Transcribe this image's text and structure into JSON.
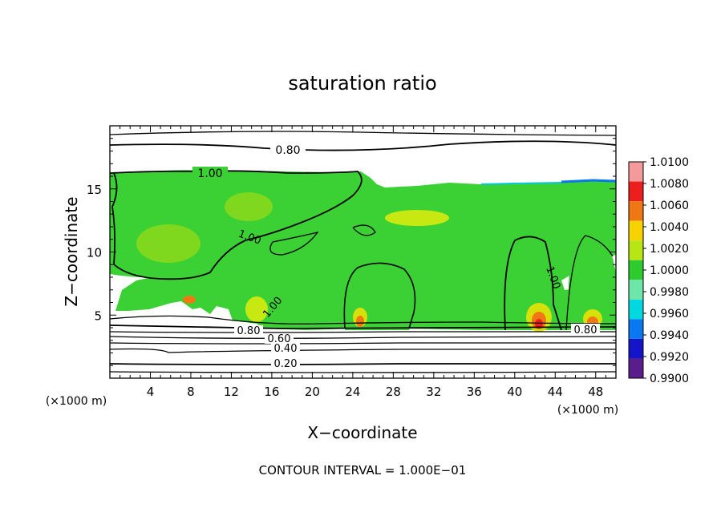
{
  "chart_data": {
    "type": "heatmap",
    "title": "saturation ratio",
    "xlabel": "X−coordinate",
    "ylabel": "Z−coordinate",
    "x_unit": "(×1000 m)",
    "x_unit_right": "(×1000 m)",
    "footer": "CONTOUR INTERVAL = 1.000E−01",
    "xlim": [
      0,
      50
    ],
    "ylim": [
      0,
      20
    ],
    "x_ticks": [
      4,
      8,
      12,
      16,
      20,
      24,
      28,
      32,
      36,
      40,
      44,
      48
    ],
    "y_ticks": [
      5,
      10,
      15
    ],
    "colorbar": {
      "levels": [
        "1.0100",
        "1.0080",
        "1.0060",
        "1.0040",
        "1.0020",
        "1.0000",
        "0.9980",
        "0.9960",
        "0.9940",
        "0.9920",
        "0.9900"
      ],
      "colors": [
        "#f59a9a",
        "#ee1e1e",
        "#f07814",
        "#f5d200",
        "#b8e614",
        "#2ecb2e",
        "#6ee6aa",
        "#00d8e0",
        "#0a78f0",
        "#1414c8",
        "#5a1e8c"
      ]
    },
    "contour_labels": [
      "0.80",
      "1.00",
      "1.00",
      "1.00",
      "1.00",
      "0.80",
      "0.80",
      "0.60",
      "0.40",
      "0.20"
    ]
  }
}
